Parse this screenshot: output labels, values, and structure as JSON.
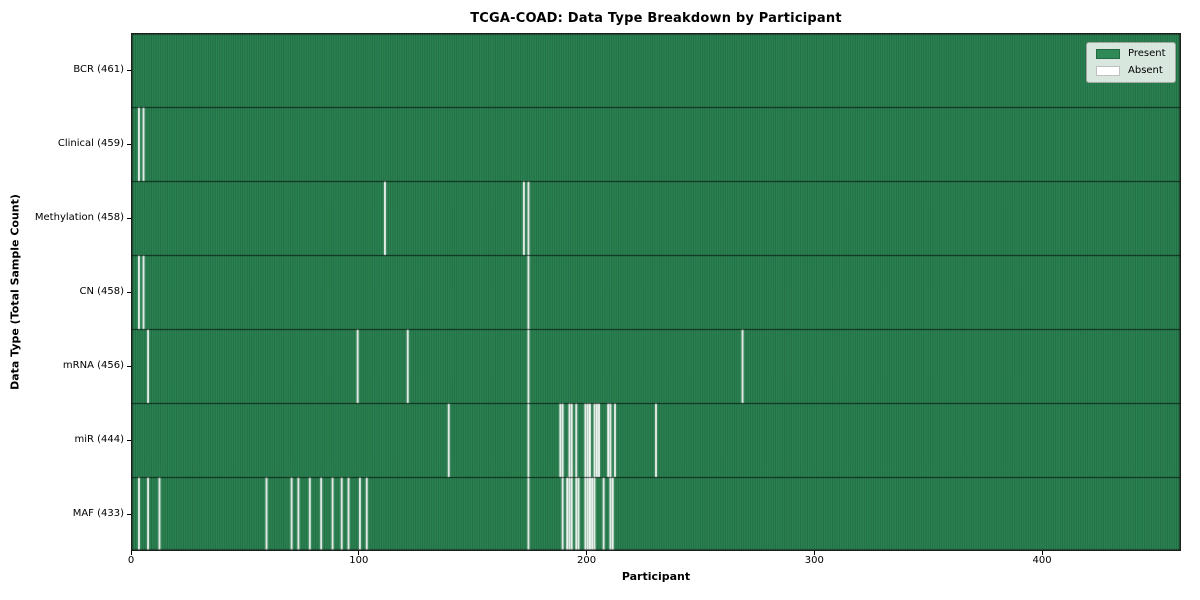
{
  "title": "TCGA-COAD: Data Type Breakdown by Participant",
  "chart_data": {
    "type": "heatmap",
    "title": "TCGA-COAD: Data Type Breakdown by Participant",
    "xlabel": "Participant",
    "ylabel": "Data Type (Total Sample Count)",
    "x_ticks": [
      0,
      100,
      200,
      300,
      400
    ],
    "x_range": [
      0,
      461
    ],
    "n_participants": 461,
    "grid": false,
    "legend_position": "upper right",
    "legend": [
      {
        "label": "Present",
        "color": "#2e8b57"
      },
      {
        "label": "Absent",
        "color": "#ffffff"
      }
    ],
    "colors": {
      "present": "#2e8b57",
      "absent": "#ffffff",
      "cell_edge": "rgba(10,35,22,0.5)",
      "row_divider": "rgba(0,0,0,0.7)",
      "plot_border": "#1a1a1a"
    },
    "rows": [
      {
        "name": "BCR",
        "label": "BCR (461)",
        "total": 461,
        "absent": []
      },
      {
        "name": "Clinical",
        "label": "Clinical (459)",
        "total": 459,
        "absent": [
          3,
          5
        ]
      },
      {
        "name": "Methylation",
        "label": "Methylation (458)",
        "total": 458,
        "absent": [
          111,
          172,
          174
        ]
      },
      {
        "name": "CN",
        "label": "CN (458)",
        "total": 458,
        "absent": [
          3,
          5,
          174
        ]
      },
      {
        "name": "mRNA",
        "label": "mRNA (456)",
        "total": 456,
        "absent": [
          7,
          99,
          121,
          174,
          268
        ]
      },
      {
        "name": "miR",
        "label": "miR (444)",
        "total": 444,
        "absent": [
          139,
          174,
          188,
          189,
          192,
          193,
          195,
          199,
          200,
          201,
          203,
          204,
          205,
          209,
          210,
          212,
          230
        ]
      },
      {
        "name": "MAF",
        "label": "MAF (433)",
        "total": 433,
        "absent": [
          3,
          7,
          12,
          59,
          70,
          73,
          78,
          83,
          88,
          92,
          95,
          100,
          103,
          174,
          189,
          191,
          192,
          193,
          195,
          196,
          199,
          200,
          201,
          202,
          203,
          207,
          210,
          211
        ]
      }
    ]
  }
}
